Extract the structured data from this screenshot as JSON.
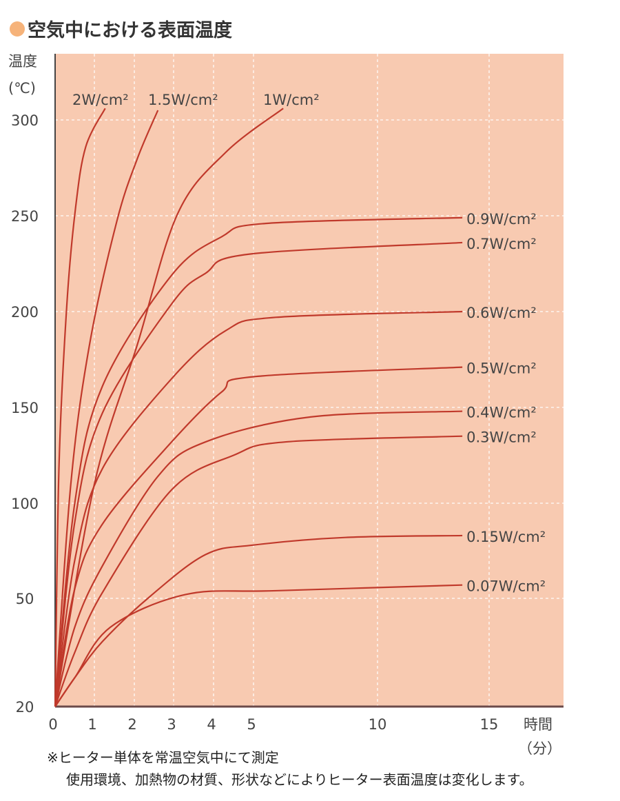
{
  "title": "空気中における表面温度",
  "chart_data": {
    "type": "line",
    "title": "空気中における表面温度",
    "ylabel": "温度",
    "yunit": "(℃)",
    "xlabel": "時間",
    "xunit": "（分）",
    "xticks": [
      0,
      1,
      2,
      3,
      4,
      5,
      10,
      15
    ],
    "yticks": [
      20,
      50,
      100,
      150,
      200,
      250,
      300
    ],
    "xlim": [
      0,
      15.8
    ],
    "ylim": [
      20,
      330
    ],
    "grid": true,
    "background": "#f8cab1",
    "line_color": "#c0392b",
    "series": [
      {
        "name": "2W/cm²",
        "x": [
          0,
          0.1,
          0.3,
          0.52,
          0.78,
          1.27
        ],
        "y": [
          20,
          120,
          204,
          254,
          286,
          306
        ]
      },
      {
        "name": "1.5W/cm²",
        "x": [
          0,
          0.4,
          0.87,
          1.56,
          2.08,
          2.6
        ],
        "y": [
          20,
          110,
          182,
          247,
          280,
          305
        ]
      },
      {
        "name": "1W/cm²",
        "x": [
          0,
          1,
          2.08,
          3.1,
          4.3,
          6.2
        ],
        "y": [
          20,
          110,
          183,
          251,
          283,
          306
        ]
      },
      {
        "name": "0.9W/cm²",
        "x": [
          0,
          0.5,
          1.2,
          2.95,
          4.2,
          5.5,
          13.8
        ],
        "y": [
          20,
          100,
          161,
          219,
          239,
          246,
          249
        ]
      },
      {
        "name": "0.7W/cm²",
        "x": [
          0,
          0.5,
          1.2,
          2.95,
          3.8,
          4.9,
          13.8
        ],
        "y": [
          20,
          90,
          147,
          204,
          220,
          230,
          236
        ]
      },
      {
        "name": "0.6W/cm²",
        "x": [
          0,
          0.5,
          1.2,
          2.95,
          4.3,
          5.9,
          13.8
        ],
        "y": [
          20,
          70,
          118,
          165,
          190,
          197,
          200
        ]
      },
      {
        "name": "0.5W/cm²",
        "x": [
          0,
          0.5,
          1.2,
          2.95,
          4.2,
          5,
          13.8
        ],
        "y": [
          20,
          55,
          89,
          132,
          158,
          166,
          171
        ]
      },
      {
        "name": "0.4W/cm²",
        "x": [
          0,
          0.5,
          1.2,
          2.6,
          3.8,
          7.3,
          13.8
        ],
        "y": [
          20,
          42,
          67,
          114,
          132,
          145,
          148
        ]
      },
      {
        "name": "0.3W/cm²",
        "x": [
          0,
          0.5,
          1.2,
          2.95,
          4.5,
          6.3,
          13.8
        ],
        "y": [
          20,
          35,
          53,
          107,
          125,
          132,
          135
        ]
      },
      {
        "name": "0.15W/cm²",
        "x": [
          0,
          0.5,
          1.2,
          2.4,
          3.8,
          5,
          8.7,
          13.8
        ],
        "y": [
          20,
          28,
          38,
          51,
          73,
          78,
          82,
          83
        ]
      },
      {
        "name": "0.07W/cm²",
        "x": [
          0,
          0.5,
          1.4,
          3.3,
          5.9,
          13.8
        ],
        "y": [
          20,
          28,
          42,
          52,
          54,
          57
        ]
      }
    ]
  },
  "notes": [
    "※ヒーター単体を常温空気中にて測定",
    "使用環境、加熱物の材質、形状などによりヒーター表面温度は変化します。"
  ]
}
